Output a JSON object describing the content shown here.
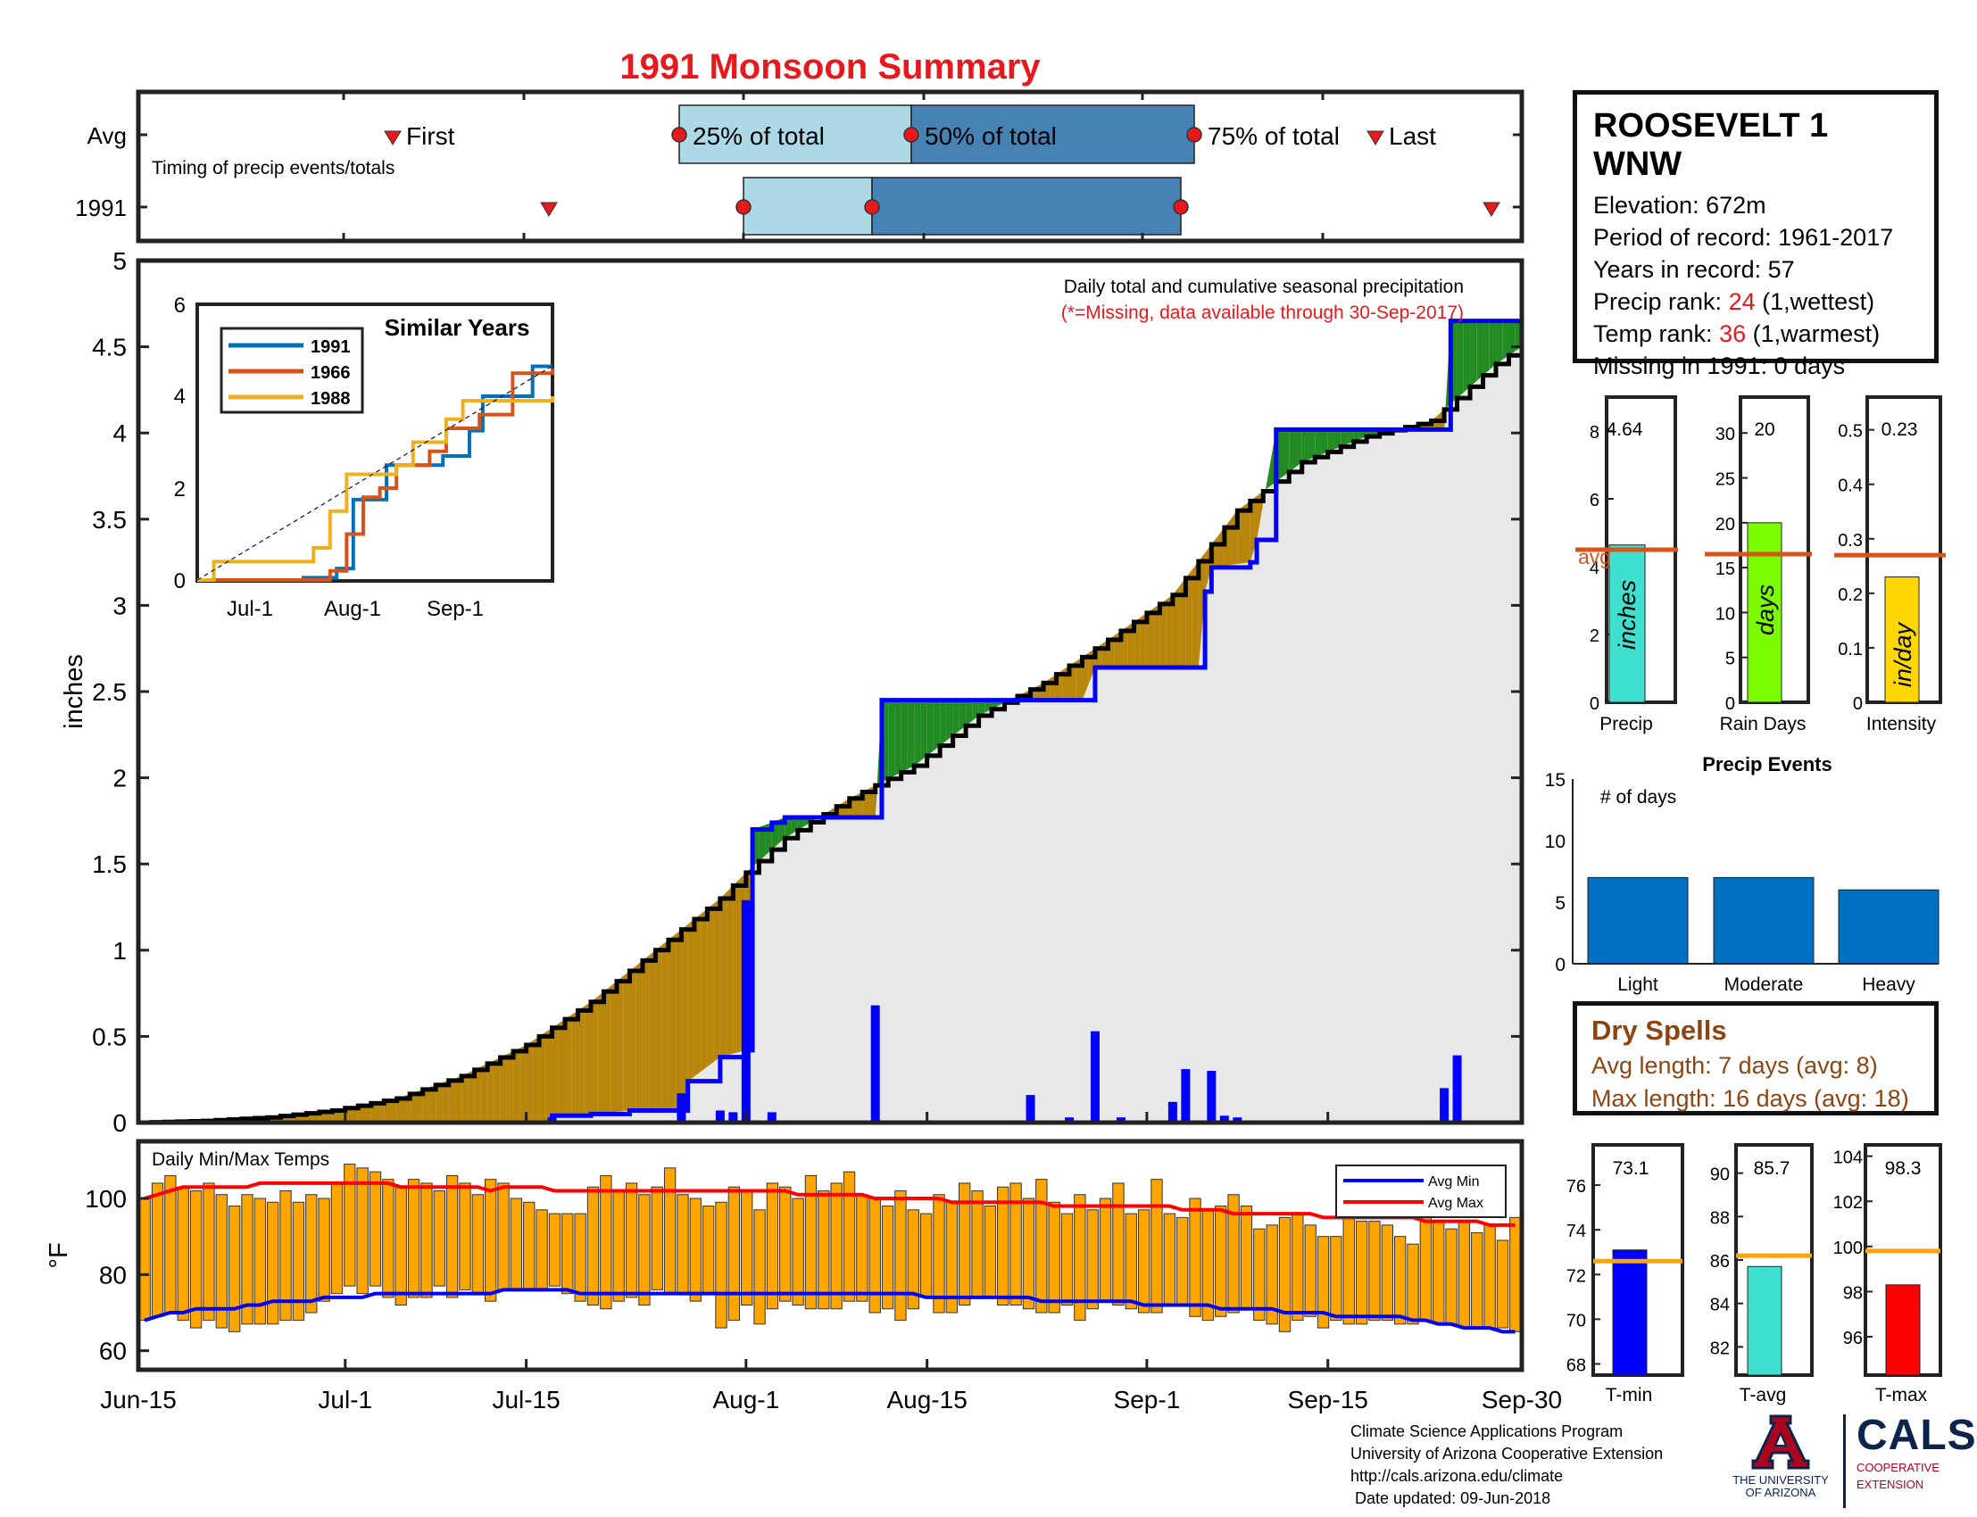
{
  "title": "1991 Monsoon Summary",
  "timing": {
    "avg_label": "Avg",
    "year_label": "1991",
    "caption": "Timing of precip events/totals",
    "first_label": "First",
    "last_label": "Last",
    "p25_label": "25% of total",
    "p50_label": "50% of total",
    "p75_label": "75% of total"
  },
  "main_plot": {
    "y_label": "inches",
    "caption": "Daily total and cumulative seasonal precipitation",
    "missing_note": "(*=Missing, data available through 30-Sep-2017)"
  },
  "similar_years": {
    "title": "Similar Years",
    "legend": [
      "1991",
      "1966",
      "1988"
    ],
    "x_ticks": [
      "Jul-1",
      "Aug-1",
      "Sep-1"
    ],
    "y_ticks": [
      "0",
      "2",
      "4",
      "6"
    ]
  },
  "temps_plot": {
    "caption": "Daily Min/Max Temps",
    "y_label": "°F",
    "legend_min": "Avg Min",
    "legend_max": "Avg Max"
  },
  "x_axis_labels": [
    "Jun-15",
    "Jul-1",
    "Jul-15",
    "Aug-1",
    "Aug-15",
    "Sep-1",
    "Sep-15",
    "Sep-30"
  ],
  "station": {
    "name": "ROOSEVELT 1 WNW",
    "elevation": "Elevation: 672m",
    "period": "Period of record: 1961-2017",
    "years": "Years in record: 57",
    "precip_rank_prefix": "Precip rank: ",
    "precip_rank": "24",
    "precip_rank_suffix": " (1,wettest)",
    "temp_rank_prefix": "Temp rank: ",
    "temp_rank": "36",
    "temp_rank_suffix": " (1,warmest)",
    "missing": "Missing in 1991: 0 days"
  },
  "summary_bars": {
    "precip": {
      "label": "Precip",
      "unit": "inches",
      "value_text": "4.64",
      "avg_label": "avg"
    },
    "rain_days": {
      "label": "Rain Days",
      "unit": "days",
      "value_text": "20"
    },
    "intensity": {
      "label": "Intensity",
      "unit": "in/day",
      "value_text": "0.23"
    }
  },
  "precip_events": {
    "title": "Precip Events",
    "ylabel": "# of days",
    "categories": [
      "Light",
      "Moderate",
      "Heavy"
    ]
  },
  "dry_spells": {
    "title": "Dry Spells",
    "avg_length": "Avg length: 7 days (avg: 8)",
    "max_length": "Max length: 16 days (avg: 18)"
  },
  "temp_bars": {
    "tmin": {
      "label": "T-min",
      "value_text": "73.1"
    },
    "tavg": {
      "label": "T-avg",
      "value_text": "85.7"
    },
    "tmax": {
      "label": "T-max",
      "value_text": "98.3"
    }
  },
  "footer": {
    "line1": "Climate Science Applications Program",
    "line2": "University of Arizona Cooperative Extension",
    "line3": "http://cals.arizona.edu/climate",
    "line4": " Date updated: 09-Jun-2018"
  },
  "logos": {
    "ua_letter": "A",
    "ua_line1": "THE UNIVERSITY",
    "ua_line2": "OF ARIZONA",
    "cals": "CALS",
    "cals_line1": "COOPERATIVE",
    "cals_line2": "EXTENSION"
  },
  "colors": {
    "title": "#e8191c",
    "year_line": "#0000ff",
    "above_avg": "#228b22",
    "below_avg": "#b8860b",
    "avg_fill": "#e8e8e8",
    "temp_bar": "#ffa500",
    "avg_min_line": "#0000ff",
    "avg_max_line": "#ff0000",
    "precip_bar": "#40e0d0",
    "rain_days_bar": "#7cfc00",
    "intensity_bar": "#ffd700",
    "events_bar": "#0070c0",
    "avg_marker": "#d9541a",
    "temp_avg_marker": "#ffa500",
    "tmin_bar": "#0000ff",
    "tavg_bar": "#40e0d0",
    "tmax_bar": "#ff0000"
  },
  "chart_data": [
    {
      "type": "line",
      "name": "cumulative seasonal precipitation",
      "xlabel": "",
      "ylabel": "inches",
      "xlim": [
        0,
        107
      ],
      "ylim": [
        0,
        5
      ],
      "y_ticks": [
        0,
        0.5,
        1,
        1.5,
        2,
        2.5,
        3,
        3.5,
        4,
        4.5,
        5
      ],
      "y_tick_labels": [
        "0",
        "0.5",
        "1",
        "1.5",
        "2",
        "2.5",
        "3",
        "3.5",
        "4",
        "4.5",
        "5"
      ],
      "x_ticks": [
        0,
        16,
        30,
        47,
        61,
        78,
        92,
        107
      ],
      "x_tick_labels": [
        "Jun-15",
        "Jul-1",
        "Jul-15",
        "Aug-1",
        "Aug-15",
        "Sep-1",
        "Sep-15",
        "Sep-30"
      ],
      "series": [
        {
          "name": "1991",
          "x": [
            32,
            35,
            38,
            42,
            42.5,
            45,
            47,
            47.5,
            49,
            50,
            52,
            54,
            57,
            57.5,
            62,
            69,
            73,
            74,
            82,
            82.5,
            83,
            86,
            86.5,
            88,
            101,
            101.5,
            102,
            107
          ],
          "y": [
            0.04,
            0.05,
            0.07,
            0.07,
            0.24,
            0.38,
            0.42,
            1.7,
            1.74,
            1.77,
            1.77,
            1.77,
            1.77,
            2.45,
            2.45,
            2.45,
            2.45,
            2.64,
            2.64,
            3.08,
            3.22,
            3.25,
            3.38,
            4.02,
            4.02,
            4.65,
            4.65,
            4.65
          ]
        }
      ],
      "average": {
        "x": [
          0,
          5,
          10,
          15,
          20,
          25,
          30,
          35,
          40,
          45,
          47,
          50,
          55,
          60,
          65,
          70,
          75,
          80,
          85,
          90,
          95,
          100,
          105,
          107
        ],
        "y": [
          0,
          0.01,
          0.03,
          0.07,
          0.14,
          0.27,
          0.45,
          0.7,
          1.0,
          1.3,
          1.45,
          1.65,
          1.88,
          2.07,
          2.36,
          2.55,
          2.8,
          3.06,
          3.55,
          3.83,
          3.98,
          4.07,
          4.4,
          4.5
        ]
      },
      "daily_precip": {
        "x": [
          32,
          42,
          45,
          46,
          47,
          49,
          57,
          69,
          72,
          74,
          76,
          80,
          81,
          83,
          84,
          85,
          101,
          102
        ],
        "y": [
          0.03,
          0.17,
          0.07,
          0.06,
          1.29,
          0.06,
          0.68,
          0.16,
          0.03,
          0.53,
          0.03,
          0.12,
          0.31,
          0.3,
          0.04,
          0.03,
          0.2,
          0.39
        ]
      }
    },
    {
      "type": "line",
      "title": "Similar Years",
      "xlim": [
        0,
        107
      ],
      "ylim": [
        0,
        6
      ],
      "series": [
        {
          "name": "1991",
          "x": [
            0,
            32,
            42,
            47,
            57,
            74,
            82,
            86,
            101,
            107
          ],
          "y": [
            0,
            0.05,
            0.25,
            1.75,
            2.5,
            2.7,
            3.25,
            4.0,
            4.65,
            4.65
          ]
        },
        {
          "name": "1966",
          "x": [
            0,
            40,
            45,
            50,
            55,
            60,
            70,
            75,
            85,
            95,
            107
          ],
          "y": [
            0,
            0.2,
            1.0,
            1.8,
            2.0,
            2.5,
            2.8,
            3.3,
            3.6,
            4.5,
            4.6
          ]
        },
        {
          "name": "1988",
          "x": [
            0,
            5,
            20,
            35,
            40,
            45,
            60,
            65,
            75,
            80,
            107
          ],
          "y": [
            0,
            0.4,
            0.4,
            0.7,
            1.5,
            2.3,
            2.5,
            3.0,
            3.5,
            3.9,
            4.0
          ]
        }
      ]
    },
    {
      "type": "bar",
      "title": "Daily Min/Max Temps",
      "ylabel": "°F",
      "ylim": [
        55,
        115
      ],
      "y_ticks": [
        60,
        80,
        100
      ],
      "x_days": 108,
      "tmax": [
        100,
        104,
        106,
        103,
        102,
        104,
        101,
        98,
        101,
        100,
        99,
        102,
        99,
        101,
        100,
        104,
        109,
        108,
        107,
        105,
        103,
        105,
        104,
        102,
        106,
        104,
        101,
        105,
        104,
        100,
        99,
        97,
        96,
        96,
        96,
        103,
        106,
        102,
        104,
        101,
        103,
        108,
        101,
        100,
        98,
        99,
        103,
        102,
        97,
        104,
        103,
        100,
        106,
        102,
        104,
        107,
        101,
        100,
        98,
        102,
        97,
        96,
        101,
        99,
        104,
        102,
        98,
        103,
        104,
        100,
        105,
        99,
        96,
        101,
        97,
        100,
        104,
        96,
        97,
        105,
        96,
        95,
        100,
        97,
        98,
        101,
        98,
        92,
        93,
        95,
        96,
        93,
        90,
        90,
        95,
        94,
        94,
        93,
        90,
        88,
        96,
        94,
        92,
        94,
        91,
        93,
        89,
        95
      ],
      "tmin": [
        68,
        69,
        70,
        68,
        66,
        68,
        66,
        65,
        67,
        67,
        67,
        68,
        68,
        70,
        73,
        75,
        77,
        75,
        77,
        74,
        72,
        74,
        74,
        77,
        74,
        76,
        75,
        73,
        76,
        76,
        76,
        76,
        77,
        75,
        73,
        72,
        71,
        73,
        74,
        72,
        76,
        75,
        75,
        73,
        75,
        66,
        68,
        72,
        67,
        71,
        73,
        72,
        71,
        71,
        71,
        73,
        73,
        70,
        71,
        68,
        71,
        74,
        70,
        70,
        72,
        74,
        74,
        72,
        72,
        71,
        70,
        70,
        72,
        68,
        71,
        73,
        72,
        71,
        70,
        70,
        72,
        72,
        69,
        68,
        69,
        70,
        71,
        68,
        67,
        65,
        68,
        69,
        66,
        68,
        67,
        67,
        68,
        68,
        67,
        67,
        68,
        67,
        67,
        66,
        66,
        66,
        66,
        65
      ],
      "avg_max": [
        100,
        101,
        102,
        103,
        103,
        103,
        103,
        103,
        103,
        104,
        104,
        104,
        104,
        104,
        104,
        104,
        104,
        104,
        104,
        104,
        103,
        103,
        103,
        103,
        103,
        103,
        103,
        102,
        103,
        103,
        103,
        103,
        102,
        102,
        102,
        102,
        102,
        102,
        102,
        102,
        102,
        102,
        102,
        102,
        102,
        102,
        102,
        102,
        102,
        102,
        102,
        101,
        101,
        101,
        101,
        101,
        101,
        100,
        100,
        100,
        100,
        100,
        100,
        99,
        99,
        99,
        99,
        99,
        99,
        99,
        99,
        98,
        98,
        98,
        98,
        98,
        98,
        98,
        98,
        98,
        98,
        97,
        97,
        97,
        97,
        96,
        96,
        96,
        96,
        96,
        96,
        96,
        95,
        95,
        95,
        95,
        95,
        95,
        95,
        95,
        94,
        94,
        94,
        94,
        94,
        93,
        93,
        93
      ],
      "avg_min": [
        68,
        69,
        70,
        70,
        71,
        71,
        71,
        71,
        72,
        72,
        73,
        73,
        73,
        73,
        74,
        74,
        74,
        74,
        75,
        75,
        75,
        75,
        75,
        75,
        75,
        75,
        75,
        75,
        76,
        76,
        76,
        76,
        76,
        76,
        75,
        75,
        75,
        75,
        75,
        75,
        75,
        75,
        75,
        75,
        75,
        75,
        75,
        75,
        75,
        75,
        75,
        75,
        75,
        75,
        75,
        75,
        75,
        75,
        75,
        75,
        75,
        74,
        74,
        74,
        74,
        74,
        74,
        74,
        74,
        74,
        73,
        73,
        73,
        73,
        73,
        73,
        73,
        73,
        72,
        72,
        72,
        72,
        72,
        72,
        71,
        71,
        71,
        71,
        71,
        70,
        70,
        70,
        70,
        69,
        69,
        69,
        69,
        69,
        69,
        68,
        68,
        67,
        67,
        66,
        66,
        66,
        65,
        65
      ],
      "series": [
        {
          "name": "Avg Min"
        },
        {
          "name": "Avg Max"
        }
      ]
    },
    {
      "type": "bar",
      "title": "Precip",
      "categories": [
        "Precip"
      ],
      "values": [
        4.64
      ],
      "average": 4.5,
      "ylim": [
        0,
        9
      ],
      "y_ticks": [
        0,
        2,
        4,
        6,
        8
      ]
    },
    {
      "type": "bar",
      "title": "Rain Days",
      "categories": [
        "Rain Days"
      ],
      "values": [
        20
      ],
      "average": 16.5,
      "ylim": [
        0,
        34
      ],
      "y_ticks": [
        0,
        5,
        10,
        15,
        20,
        25,
        30
      ]
    },
    {
      "type": "bar",
      "title": "Intensity",
      "categories": [
        "Intensity"
      ],
      "values": [
        0.23
      ],
      "average": 0.27,
      "ylim": [
        0,
        0.56
      ],
      "y_ticks": [
        0,
        0.1,
        0.2,
        0.3,
        0.4,
        0.5
      ]
    },
    {
      "type": "bar",
      "title": "Precip Events",
      "ylabel": "# of days",
      "categories": [
        "Light",
        "Moderate",
        "Heavy"
      ],
      "values": [
        7,
        7,
        6
      ],
      "ylim": [
        0,
        15
      ],
      "y_ticks": [
        0,
        5,
        10,
        15
      ]
    },
    {
      "type": "bar",
      "title": "T-min",
      "categories": [
        "T-min"
      ],
      "values": [
        73.1
      ],
      "average": 72.6,
      "ylim": [
        67.5,
        77.8
      ],
      "y_ticks": [
        68,
        70,
        72,
        74,
        76
      ]
    },
    {
      "type": "bar",
      "title": "T-avg",
      "categories": [
        "T-avg"
      ],
      "values": [
        85.7
      ],
      "average": 86.2,
      "ylim": [
        80.7,
        91.3
      ],
      "y_ticks": [
        82,
        84,
        86,
        88,
        90
      ]
    },
    {
      "type": "bar",
      "title": "T-max",
      "categories": [
        "T-max"
      ],
      "values": [
        98.3
      ],
      "average": 99.8,
      "ylim": [
        94.3,
        104.5
      ],
      "y_ticks": [
        96,
        98,
        100,
        102,
        104
      ]
    }
  ]
}
